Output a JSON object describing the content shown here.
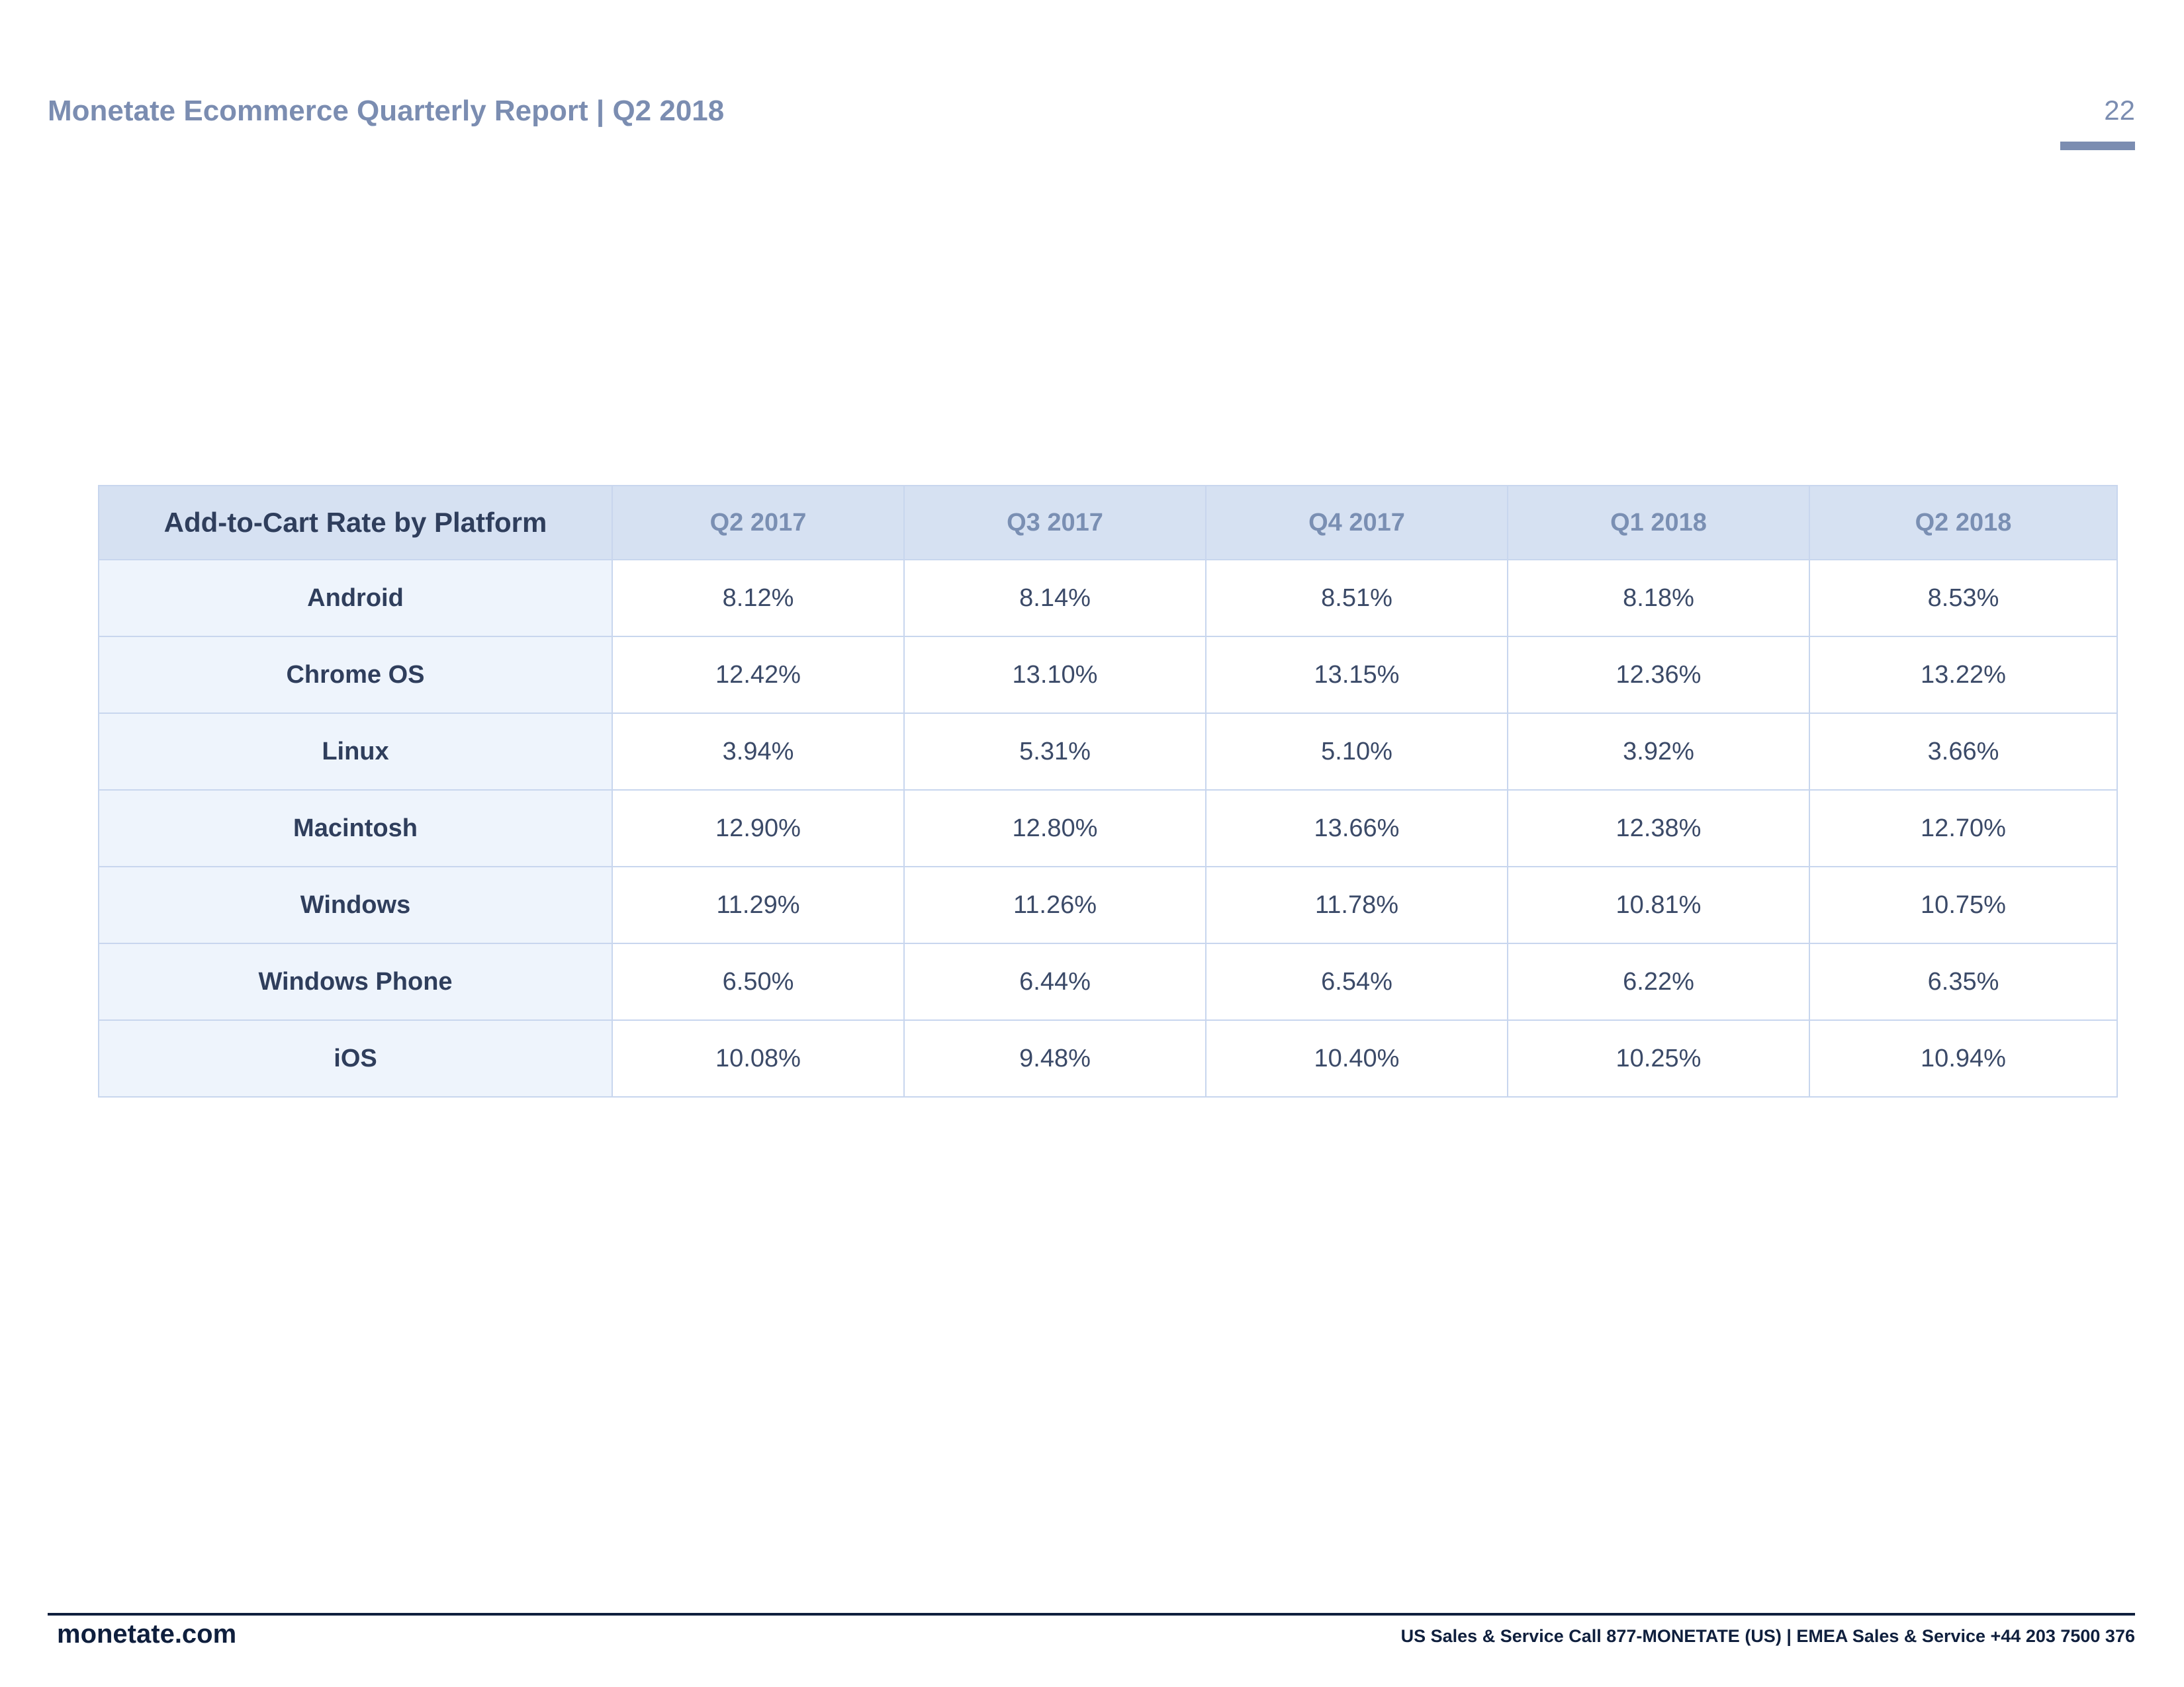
{
  "header": {
    "title": "Monetate Ecommerce Quarterly Report | Q2 2018",
    "page_number": "22"
  },
  "table": {
    "columns": [
      "Add-to-Cart Rate by Platform",
      "Q2 2017",
      "Q3 2017",
      "Q4 2017",
      "Q1 2018",
      "Q2 2018"
    ],
    "rows": [
      {
        "platform": "Android",
        "values": [
          "8.12%",
          "8.14%",
          "8.51%",
          "8.18%",
          "8.53%"
        ]
      },
      {
        "platform": "Chrome OS",
        "values": [
          "12.42%",
          "13.10%",
          "13.15%",
          "12.36%",
          "13.22%"
        ]
      },
      {
        "platform": "Linux",
        "values": [
          "3.94%",
          "5.31%",
          "5.10%",
          "3.92%",
          "3.66%"
        ]
      },
      {
        "platform": "Macintosh",
        "values": [
          "12.90%",
          "12.80%",
          "13.66%",
          "12.38%",
          "12.70%"
        ]
      },
      {
        "platform": "Windows",
        "values": [
          "11.29%",
          "11.26%",
          "11.78%",
          "10.81%",
          "10.75%"
        ]
      },
      {
        "platform": "Windows Phone",
        "values": [
          "6.50%",
          "6.44%",
          "6.54%",
          "6.22%",
          "6.35%"
        ]
      },
      {
        "platform": "iOS",
        "values": [
          "10.08%",
          "9.48%",
          "10.40%",
          "10.25%",
          "10.94%"
        ]
      }
    ]
  },
  "footer": {
    "website": "monetate.com",
    "contact": "US Sales & Service Call 877-MONETATE (US) | EMEA Sales & Service +44 203 7500 376"
  },
  "colors": {
    "accent": "#7b8db1",
    "header_bg": "#d6e1f2",
    "first_col_bg": "#eef4fc",
    "footer_line": "#0f1f3d"
  }
}
